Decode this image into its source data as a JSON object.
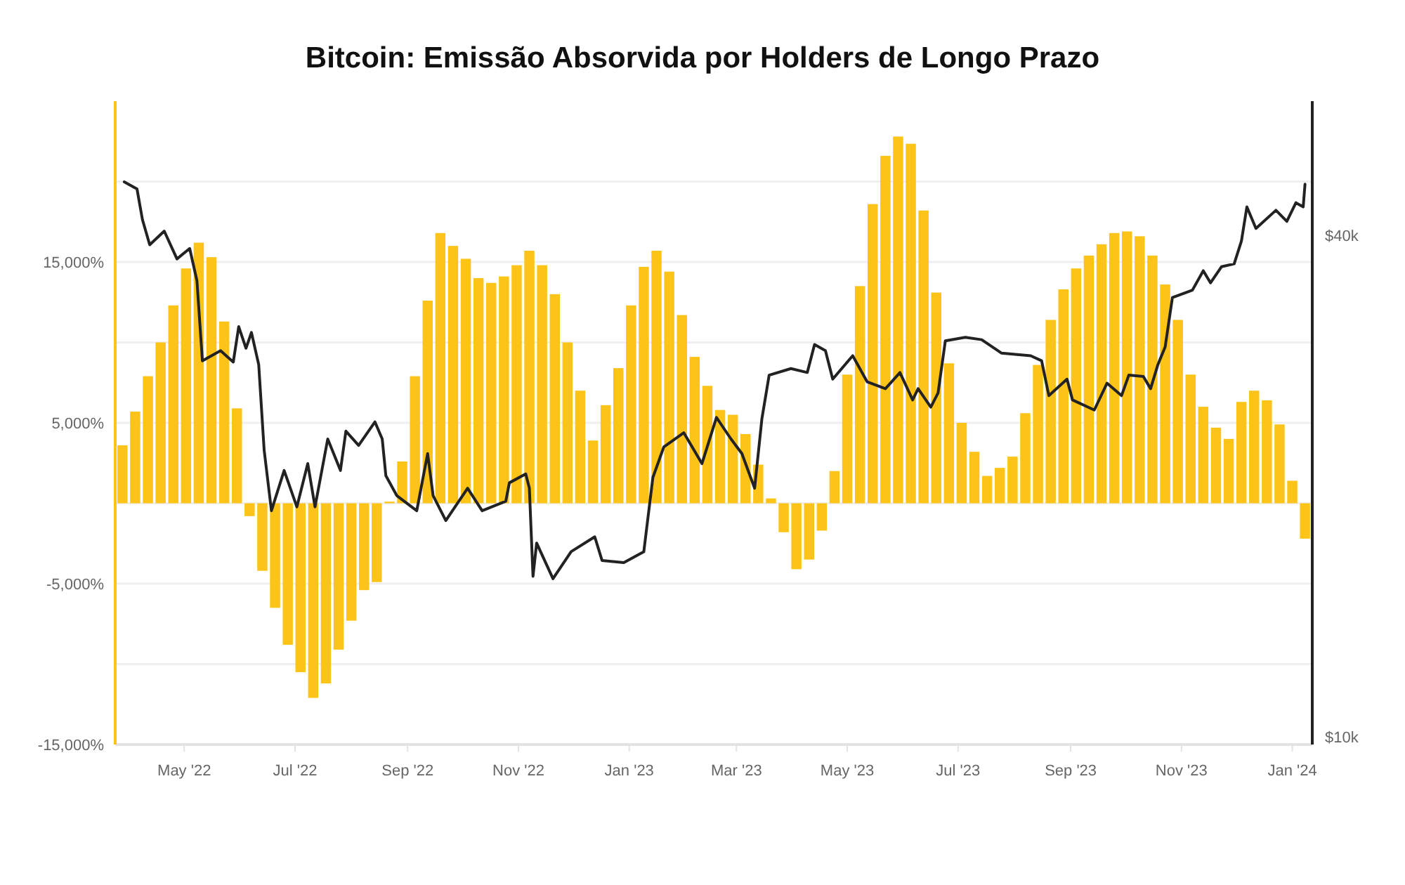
{
  "chart_data": {
    "type": "bar",
    "title": "Bitcoin: Emissão Absorvida por Holders de Longo Prazo",
    "xlim": [
      "2022-03-24",
      "2024-01-12"
    ],
    "xticks": [
      {
        "value": "2022-05-01",
        "label": "May '22"
      },
      {
        "value": "2022-07-01",
        "label": "Jul '22"
      },
      {
        "value": "2022-09-01",
        "label": "Sep '22"
      },
      {
        "value": "2022-11-01",
        "label": "Nov '22"
      },
      {
        "value": "2023-01-01",
        "label": "Jan '23"
      },
      {
        "value": "2023-03-01",
        "label": "Mar '23"
      },
      {
        "value": "2023-05-01",
        "label": "May '23"
      },
      {
        "value": "2023-07-01",
        "label": "Jul '23"
      },
      {
        "value": "2023-09-01",
        "label": "Sep '23"
      },
      {
        "value": "2023-11-01",
        "label": "Nov '23"
      },
      {
        "value": "2024-01-01",
        "label": "Jan '24"
      }
    ],
    "ylim": [
      -15000,
      25000
    ],
    "yticks": [
      {
        "value": -15000,
        "label": "-15,000%"
      },
      {
        "value": -10000,
        "label": null
      },
      {
        "value": -5000,
        "label": "-5,000%"
      },
      {
        "value": 0,
        "label": null
      },
      {
        "value": 5000,
        "label": "5,000%"
      },
      {
        "value": 10000,
        "label": null
      },
      {
        "value": 15000,
        "label": "15,000%"
      },
      {
        "value": 20000,
        "label": null
      }
    ],
    "y2lim": [
      9800,
      58000
    ],
    "y2ticks": [
      {
        "value": 10000,
        "label": "$10k"
      },
      {
        "value": 40000,
        "label": "$40k"
      }
    ],
    "log": "y2",
    "grid": "y",
    "series": [
      {
        "color": "#fcc419",
        "x": [
          "2022-03-28",
          "2022-04-04",
          "2022-04-11",
          "2022-04-18",
          "2022-04-25",
          "2022-05-02",
          "2022-05-09",
          "2022-05-16",
          "2022-05-23",
          "2022-05-30",
          "2022-06-06",
          "2022-06-13",
          "2022-06-20",
          "2022-06-27",
          "2022-07-04",
          "2022-07-11",
          "2022-07-18",
          "2022-07-25",
          "2022-08-01",
          "2022-08-08",
          "2022-08-15",
          "2022-08-22",
          "2022-08-29",
          "2022-09-05",
          "2022-09-12",
          "2022-09-19",
          "2022-09-26",
          "2022-10-03",
          "2022-10-10",
          "2022-10-17",
          "2022-10-24",
          "2022-10-31",
          "2022-11-07",
          "2022-11-14",
          "2022-11-21",
          "2022-11-28",
          "2022-12-05",
          "2022-12-12",
          "2022-12-19",
          "2022-12-26",
          "2023-01-02",
          "2023-01-09",
          "2023-01-16",
          "2023-01-23",
          "2023-01-30",
          "2023-02-06",
          "2023-02-13",
          "2023-02-20",
          "2023-02-27",
          "2023-03-06",
          "2023-03-13",
          "2023-03-20",
          "2023-03-27",
          "2023-04-03",
          "2023-04-10",
          "2023-04-17",
          "2023-04-24",
          "2023-05-01",
          "2023-05-08",
          "2023-05-15",
          "2023-05-22",
          "2023-05-29",
          "2023-06-05",
          "2023-06-12",
          "2023-06-19",
          "2023-06-26",
          "2023-07-03",
          "2023-07-10",
          "2023-07-17",
          "2023-07-24",
          "2023-07-31",
          "2023-08-07",
          "2023-08-14",
          "2023-08-21",
          "2023-08-28",
          "2023-09-04",
          "2023-09-11",
          "2023-09-18",
          "2023-09-25",
          "2023-10-02",
          "2023-10-09",
          "2023-10-16",
          "2023-10-23",
          "2023-10-30",
          "2023-11-06",
          "2023-11-13",
          "2023-11-20",
          "2023-11-27",
          "2023-12-04",
          "2023-12-11",
          "2023-12-18",
          "2023-12-25",
          "2024-01-01",
          "2024-01-08"
        ],
        "values": [
          3600,
          5700,
          7900,
          10000,
          12300,
          14600,
          16200,
          15300,
          11300,
          5900,
          -800,
          -4200,
          -6500,
          -8800,
          -10500,
          -12100,
          -11200,
          -9100,
          -7300,
          -5400,
          -4900,
          100,
          2600,
          7900,
          12600,
          16800,
          16000,
          15200,
          14000,
          13700,
          14100,
          14800,
          15700,
          14800,
          13000,
          10000,
          7000,
          3900,
          6100,
          8400,
          12300,
          14700,
          15700,
          14400,
          11700,
          9100,
          7300,
          5800,
          5500,
          4300,
          2400,
          300,
          -1800,
          -4100,
          -3500,
          -1700,
          2000,
          8000,
          13500,
          18600,
          21600,
          22800,
          22350,
          18200,
          13100,
          8700,
          5000,
          3200,
          1700,
          2200,
          2900,
          5600,
          8600,
          11400,
          13300,
          14600,
          15400,
          16100,
          16800,
          16900,
          16600,
          15400,
          13600,
          11400,
          8000,
          6000,
          4700,
          4000,
          6300,
          7000,
          6400,
          4900,
          1400,
          -2200
        ]
      },
      {
        "type": "line",
        "axis": "y2",
        "color": "#222222",
        "x": [
          "2022-03-29",
          "2022-04-05",
          "2022-04-08",
          "2022-04-12",
          "2022-04-20",
          "2022-04-27",
          "2022-05-04",
          "2022-05-08",
          "2022-05-11",
          "2022-05-21",
          "2022-05-28",
          "2022-05-31",
          "2022-06-04",
          "2022-06-07",
          "2022-06-11",
          "2022-06-14",
          "2022-06-18",
          "2022-06-25",
          "2022-07-02",
          "2022-07-08",
          "2022-07-12",
          "2022-07-19",
          "2022-07-26",
          "2022-07-29",
          "2022-08-05",
          "2022-08-14",
          "2022-08-18",
          "2022-08-20",
          "2022-08-26",
          "2022-09-06",
          "2022-09-12",
          "2022-09-15",
          "2022-09-22",
          "2022-10-04",
          "2022-10-12",
          "2022-10-25",
          "2022-10-27",
          "2022-11-05",
          "2022-11-07",
          "2022-11-09",
          "2022-11-11",
          "2022-11-20",
          "2022-11-30",
          "2022-12-13",
          "2022-12-17",
          "2022-12-29",
          "2023-01-09",
          "2023-01-14",
          "2023-01-20",
          "2023-01-31",
          "2023-02-10",
          "2023-02-18",
          "2023-02-26",
          "2023-03-04",
          "2023-03-11",
          "2023-03-15",
          "2023-03-19",
          "2023-03-31",
          "2023-04-09",
          "2023-04-13",
          "2023-04-19",
          "2023-04-23",
          "2023-05-04",
          "2023-05-12",
          "2023-05-22",
          "2023-05-30",
          "2023-06-06",
          "2023-06-09",
          "2023-06-16",
          "2023-06-20",
          "2023-06-24",
          "2023-07-05",
          "2023-07-14",
          "2023-07-25",
          "2023-08-10",
          "2023-08-16",
          "2023-08-20",
          "2023-08-30",
          "2023-09-02",
          "2023-09-14",
          "2023-09-21",
          "2023-09-29",
          "2023-10-03",
          "2023-10-11",
          "2023-10-15",
          "2023-10-19",
          "2023-10-23",
          "2023-10-27",
          "2023-11-07",
          "2023-11-13",
          "2023-11-17",
          "2023-11-23",
          "2023-11-30",
          "2023-12-04",
          "2023-12-07",
          "2023-12-12",
          "2023-12-23",
          "2023-12-29",
          "2024-01-03",
          "2024-01-07",
          "2024-01-08"
        ],
        "values": [
          46400,
          45500,
          41800,
          39000,
          40500,
          37500,
          38600,
          35300,
          28300,
          29100,
          28200,
          31100,
          29300,
          30600,
          28000,
          22100,
          18700,
          20900,
          18900,
          21300,
          18900,
          22800,
          20900,
          23300,
          22400,
          23900,
          22800,
          20600,
          19500,
          18700,
          21900,
          19500,
          18200,
          19900,
          18700,
          19200,
          20200,
          20700,
          19900,
          15600,
          17100,
          15500,
          16700,
          17400,
          16300,
          16200,
          16700,
          20500,
          22300,
          23200,
          21300,
          24200,
          22800,
          21900,
          19900,
          24100,
          27200,
          27700,
          27400,
          29600,
          29100,
          26900,
          28700,
          26700,
          26200,
          27400,
          25400,
          26200,
          24900,
          25900,
          29900,
          30200,
          30000,
          28900,
          28700,
          28300,
          25700,
          26900,
          25400,
          24700,
          26600,
          25700,
          27200,
          27100,
          26200,
          28000,
          29400,
          33700,
          34400,
          36300,
          35100,
          36700,
          37000,
          39400,
          43300,
          40800,
          42900,
          41600,
          43800,
          43300,
          46100
        ]
      }
    ]
  }
}
